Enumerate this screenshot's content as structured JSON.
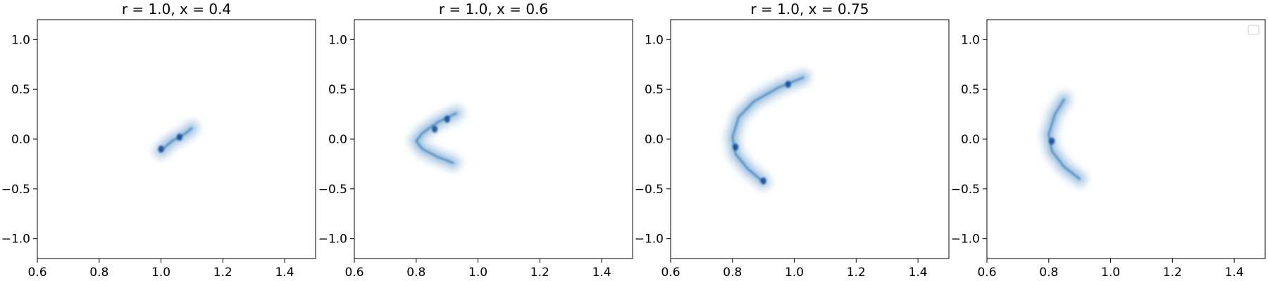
{
  "chart_data": [
    {
      "type": "density",
      "title": "r = 1.0, x = 0.4",
      "xlim": [
        0.6,
        1.5
      ],
      "ylim": [
        -1.2,
        1.2
      ],
      "xticks": [
        "0.6",
        "0.8",
        "1.0",
        "1.2",
        "1.4"
      ],
      "yticks": [
        "1.0",
        "0.5",
        "0.0",
        "−0.5",
        "−1.0"
      ],
      "color": "#2171b5",
      "legend": false,
      "shape": [
        {
          "x": 1.0,
          "y": -0.12
        },
        {
          "x": 1.02,
          "y": -0.06
        },
        {
          "x": 1.04,
          "y": -0.01
        },
        {
          "x": 1.06,
          "y": 0.02
        },
        {
          "x": 1.08,
          "y": 0.06
        },
        {
          "x": 1.1,
          "y": 0.11
        }
      ],
      "dense": [
        {
          "x": 1.0,
          "y": -0.1
        },
        {
          "x": 1.06,
          "y": 0.02
        }
      ]
    },
    {
      "type": "density",
      "title": "r = 1.0, x = 0.6",
      "xlim": [
        0.6,
        1.5
      ],
      "ylim": [
        -1.2,
        1.2
      ],
      "xticks": [
        "0.6",
        "0.8",
        "1.0",
        "1.2",
        "1.4"
      ],
      "yticks": [
        "1.0",
        "0.5",
        "0.0",
        "−0.5",
        "−1.0"
      ],
      "color": "#2171b5",
      "legend": false,
      "shape": [
        {
          "x": 0.93,
          "y": 0.26
        },
        {
          "x": 0.87,
          "y": 0.17
        },
        {
          "x": 0.82,
          "y": 0.06
        },
        {
          "x": 0.8,
          "y": -0.02
        },
        {
          "x": 0.82,
          "y": -0.1
        },
        {
          "x": 0.87,
          "y": -0.18
        },
        {
          "x": 0.92,
          "y": -0.24
        }
      ],
      "dense": [
        {
          "x": 0.86,
          "y": 0.1
        },
        {
          "x": 0.9,
          "y": 0.2
        }
      ]
    },
    {
      "type": "density",
      "title": "r = 1.0, x = 0.75",
      "xlim": [
        0.6,
        1.5
      ],
      "ylim": [
        -1.2,
        1.2
      ],
      "xticks": [
        "0.6",
        "0.8",
        "1.0",
        "1.2",
        "1.4"
      ],
      "yticks": [
        "1.0",
        "0.5",
        "0.0",
        "−0.5",
        "−1.0"
      ],
      "color": "#2171b5",
      "legend": false,
      "shape": [
        {
          "x": 1.03,
          "y": 0.62
        },
        {
          "x": 0.95,
          "y": 0.52
        },
        {
          "x": 0.87,
          "y": 0.38
        },
        {
          "x": 0.82,
          "y": 0.22
        },
        {
          "x": 0.8,
          "y": 0.02
        },
        {
          "x": 0.81,
          "y": -0.15
        },
        {
          "x": 0.85,
          "y": -0.3
        },
        {
          "x": 0.9,
          "y": -0.43
        }
      ],
      "dense": [
        {
          "x": 0.81,
          "y": -0.08
        },
        {
          "x": 0.9,
          "y": -0.42
        },
        {
          "x": 0.98,
          "y": 0.55
        }
      ]
    },
    {
      "type": "density",
      "title": "",
      "xlim": [
        0.6,
        1.5
      ],
      "ylim": [
        -1.2,
        1.2
      ],
      "xticks": [
        "0.6",
        "0.8",
        "1.0",
        "1.2",
        "1.4"
      ],
      "yticks": [
        "1.0",
        "0.5",
        "0.0",
        "−0.5",
        "−1.0"
      ],
      "color": "#2171b5",
      "legend": true,
      "shape": [
        {
          "x": 0.85,
          "y": 0.4
        },
        {
          "x": 0.82,
          "y": 0.25
        },
        {
          "x": 0.8,
          "y": 0.05
        },
        {
          "x": 0.81,
          "y": -0.12
        },
        {
          "x": 0.85,
          "y": -0.28
        },
        {
          "x": 0.9,
          "y": -0.4
        }
      ],
      "dense": [
        {
          "x": 0.81,
          "y": -0.02
        }
      ]
    }
  ]
}
